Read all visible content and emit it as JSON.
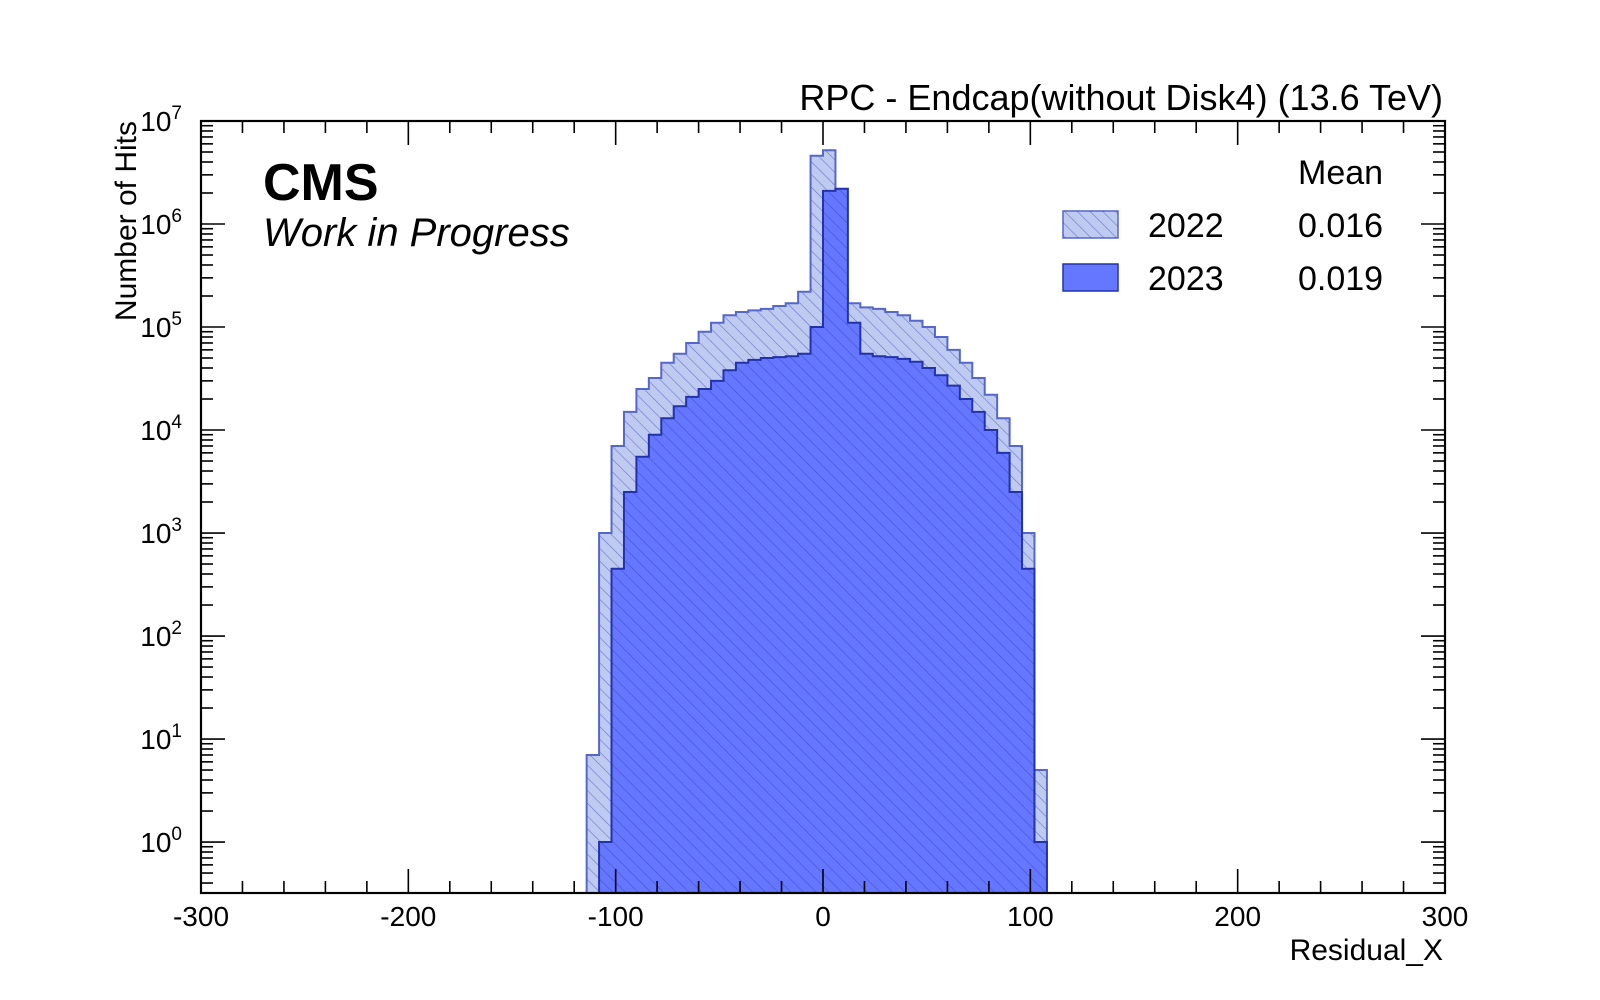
{
  "chart_data": {
    "type": "histogram",
    "title": "RPC - Endcap(without Disk4) (13.6 TeV)",
    "xlabel": "Residual_X",
    "ylabel": "Number of Hits",
    "xlim": [
      -300,
      300
    ],
    "ylim": [
      0.32,
      10000000
    ],
    "log_y": true,
    "grid": false,
    "x_ticks": [
      "-300",
      "-200",
      "-100",
      "0",
      "100",
      "200",
      "300"
    ],
    "y_tick_base": "10",
    "y_tick_exponents": [
      "0",
      "1",
      "2",
      "3",
      "4",
      "5",
      "6",
      "7"
    ],
    "experiment_label": "CMS",
    "status_label": "Work in Progress",
    "legend": {
      "placement": "top-right",
      "header": "Mean",
      "entries": [
        {
          "label": "2022",
          "mean": "0.016"
        },
        {
          "label": "2023",
          "mean": "0.019"
        }
      ]
    },
    "bin_width": 6,
    "bin_edges_start": -114,
    "series": [
      {
        "name": "2022",
        "color_fill": "#bfcaf0",
        "color_edge": "#5566cc",
        "values": [
          7,
          1000,
          7000,
          15000,
          25000,
          32000,
          45000,
          55000,
          70000,
          90000,
          110000,
          130000,
          140000,
          145000,
          150000,
          160000,
          170000,
          220000,
          4600000,
          5200000,
          230000,
          170000,
          155000,
          150000,
          140000,
          130000,
          115000,
          100000,
          80000,
          60000,
          45000,
          32000,
          22000,
          13000,
          7000,
          1000,
          5
        ]
      },
      {
        "name": "2023",
        "color_fill": "#6677ff",
        "color_edge": "#2233aa",
        "values": [
          0,
          1,
          450,
          2500,
          5500,
          9000,
          13000,
          17000,
          21000,
          25000,
          30000,
          38000,
          45000,
          48000,
          50000,
          51000,
          52000,
          55000,
          100000,
          2100000,
          2200000,
          110000,
          55000,
          52000,
          51000,
          49000,
          46000,
          40000,
          34000,
          27000,
          20000,
          15000,
          10000,
          6000,
          2500,
          450,
          1
        ]
      }
    ]
  }
}
